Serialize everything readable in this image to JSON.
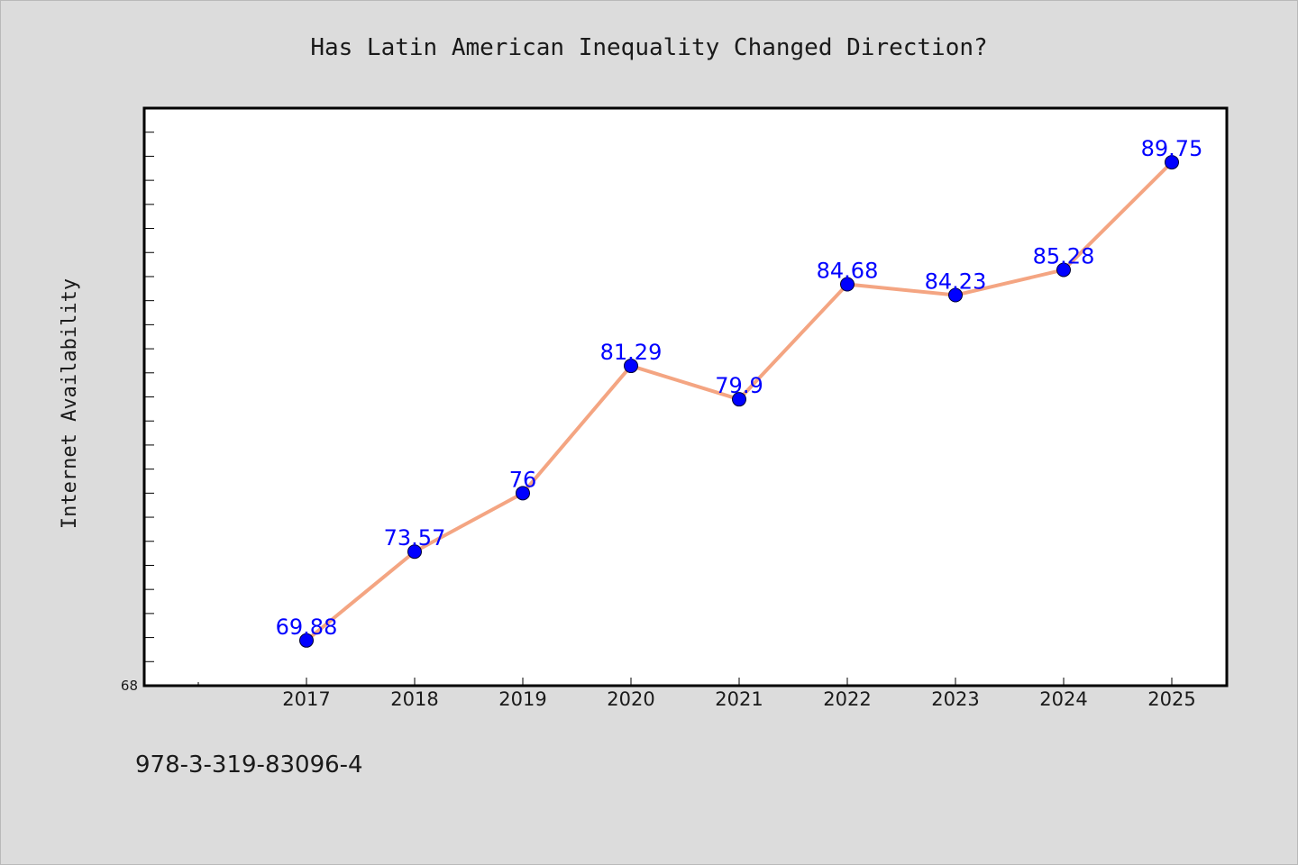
{
  "chart_data": {
    "type": "line",
    "title": "Has Latin American Inequality Changed Direction?",
    "xlabel": "",
    "ylabel": "Internet Availability",
    "categories": [
      "2017",
      "2018",
      "2019",
      "2020",
      "2021",
      "2022",
      "2023",
      "2024",
      "2025"
    ],
    "series": [
      {
        "values": [
          69.88,
          73.57,
          76,
          81.29,
          79.9,
          84.68,
          84.23,
          85.28,
          89.75
        ],
        "labels": [
          "69.88",
          "73.57",
          "76",
          "81.29",
          "79.9",
          "84.68",
          "84.23",
          "85.28",
          "89.75"
        ]
      }
    ],
    "ylim": [
      68,
      92
    ],
    "ytick_labels": [
      "68"
    ],
    "grid": false,
    "colors": {
      "line": "#f4a582",
      "marker": "#0000ff",
      "label": "#0000ff"
    }
  },
  "footnote": "978-3-319-83096-4"
}
